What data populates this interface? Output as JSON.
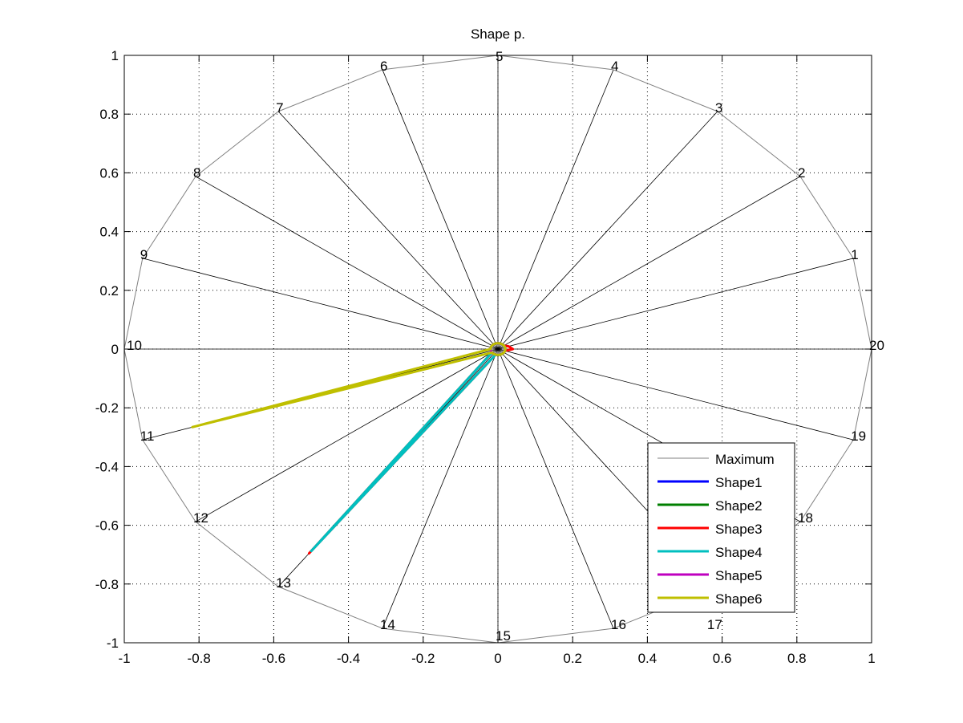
{
  "chart_data": {
    "type": "radar",
    "title": "Shape p.",
    "xlim": [
      -1,
      1
    ],
    "ylim": [
      -1,
      1
    ],
    "xticks": [
      "-1",
      "-0.8",
      "-0.6",
      "-0.4",
      "-0.2",
      "0",
      "0.2",
      "0.4",
      "0.6",
      "0.8",
      "1"
    ],
    "yticks": [
      "-1",
      "-0.8",
      "-0.6",
      "-0.4",
      "-0.2",
      "0",
      "0.2",
      "0.4",
      "0.6",
      "0.8",
      "1"
    ],
    "grid": true,
    "legend_position": "bottom-right",
    "spoke_labels": [
      "1",
      "2",
      "3",
      "4",
      "5",
      "6",
      "7",
      "8",
      "9",
      "10",
      "11",
      "12",
      "13",
      "14",
      "15",
      "16",
      "17",
      "18",
      "19",
      "20"
    ],
    "series": [
      {
        "name": "Maximum",
        "color": "#808080",
        "values": [
          1,
          1,
          1,
          1,
          1,
          1,
          1,
          1,
          1,
          1,
          1,
          1,
          1,
          1,
          1,
          1,
          1,
          1,
          1,
          1
        ]
      },
      {
        "name": "Shape1",
        "color": "#0000ff",
        "values": [
          0.02,
          0.02,
          0.02,
          0.02,
          0.02,
          0.02,
          0.02,
          0.02,
          0.02,
          0.02,
          0.02,
          0.02,
          0.02,
          0.02,
          0.02,
          0.02,
          0.02,
          0.02,
          0.02,
          0.02
        ]
      },
      {
        "name": "Shape2",
        "color": "#007f00",
        "values": [
          0.02,
          0.02,
          0.02,
          0.02,
          0.02,
          0.02,
          0.02,
          0.02,
          0.02,
          0.02,
          0.02,
          0.02,
          0.02,
          0.02,
          0.02,
          0.02,
          0.02,
          0.02,
          0.02,
          0.02
        ]
      },
      {
        "name": "Shape3",
        "color": "#ff0000",
        "values": [
          0.03,
          0.02,
          0.02,
          0.02,
          0.02,
          0.02,
          0.02,
          0.02,
          0.02,
          0.02,
          0.02,
          0.02,
          0.86,
          0.02,
          0.02,
          0.02,
          0.02,
          0.02,
          0.02,
          0.04
        ]
      },
      {
        "name": "Shape4",
        "color": "#00bfbf",
        "values": [
          0.02,
          0.02,
          0.02,
          0.02,
          0.02,
          0.02,
          0.02,
          0.02,
          0.02,
          0.02,
          0.02,
          0.02,
          0.85,
          0.02,
          0.02,
          0.02,
          0.02,
          0.02,
          0.02,
          0.02
        ]
      },
      {
        "name": "Shape5",
        "color": "#bf00bf",
        "values": [
          0.02,
          0.02,
          0.02,
          0.02,
          0.02,
          0.02,
          0.02,
          0.02,
          0.02,
          0.02,
          0.02,
          0.02,
          0.02,
          0.02,
          0.02,
          0.02,
          0.02,
          0.02,
          0.02,
          0.02
        ]
      },
      {
        "name": "Shape6",
        "color": "#bfbf00",
        "values": [
          0.02,
          0.02,
          0.02,
          0.02,
          0.02,
          0.02,
          0.02,
          0.02,
          0.02,
          0.02,
          0.86,
          0.02,
          0.02,
          0.02,
          0.02,
          0.02,
          0.02,
          0.02,
          0.02,
          0.02
        ]
      }
    ]
  }
}
